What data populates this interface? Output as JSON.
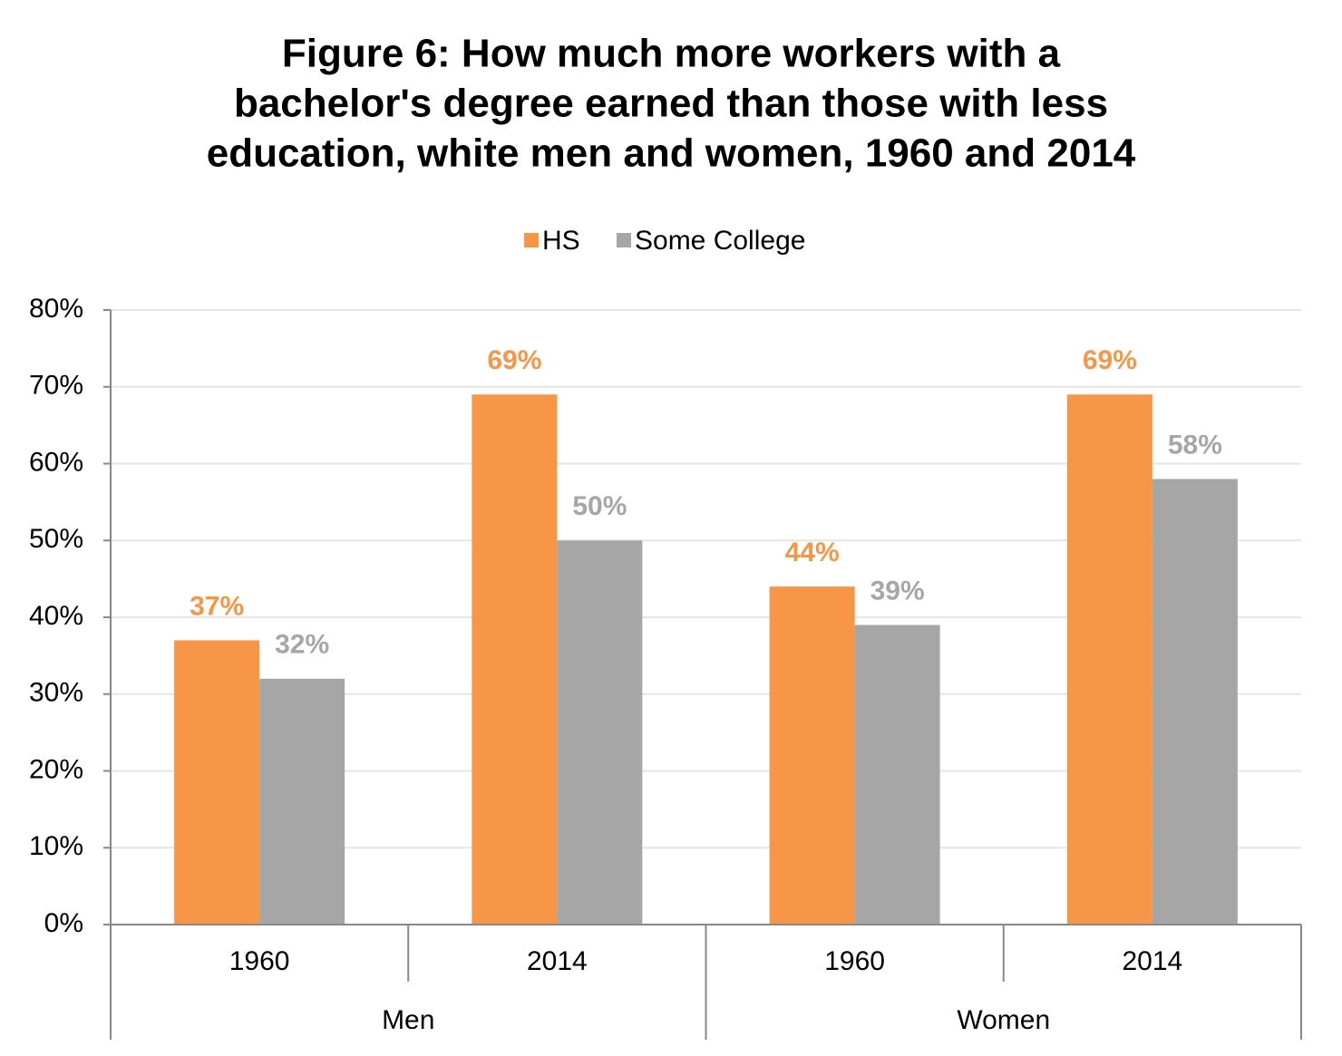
{
  "chart_data": {
    "type": "bar",
    "title": [
      "Figure 6: How much more workers with a",
      "bachelor's degree earned than those with less",
      "education, white men and women, 1960 and 2014"
    ],
    "groups": [
      {
        "name": "Men",
        "categories": [
          "1960",
          "2014"
        ]
      },
      {
        "name": "Women",
        "categories": [
          "1960",
          "2014"
        ]
      }
    ],
    "series": [
      {
        "name": "HS",
        "color": "#f79646",
        "values": [
          37,
          69,
          44,
          69
        ],
        "value_labels": [
          "37%",
          "69%",
          "44%",
          "69%"
        ]
      },
      {
        "name": "Some College",
        "color": "#a6a6a6",
        "values": [
          32,
          50,
          39,
          58
        ],
        "value_labels": [
          "32%",
          "50%",
          "39%",
          "58%"
        ]
      }
    ],
    "ylim": [
      0,
      80
    ],
    "yticks": [
      {
        "value": 0,
        "label": "0%"
      },
      {
        "value": 10,
        "label": "10%"
      },
      {
        "value": 20,
        "label": "20%"
      },
      {
        "value": 30,
        "label": "30%"
      },
      {
        "value": 40,
        "label": "40%"
      },
      {
        "value": 50,
        "label": "50%"
      },
      {
        "value": 60,
        "label": "60%"
      },
      {
        "value": 70,
        "label": "70%"
      },
      {
        "value": 80,
        "label": "80%"
      }
    ],
    "grid": true,
    "legend": "top"
  }
}
